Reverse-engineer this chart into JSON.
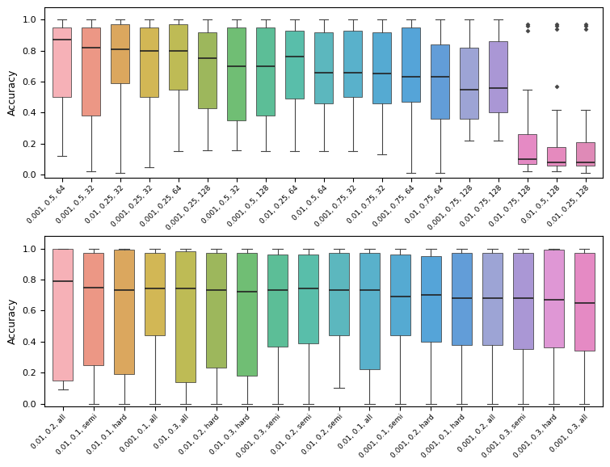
{
  "top_labels": [
    "0.001, 0.5, 64",
    "0.001, 0.5, 32",
    "0.01, 0.25, 32",
    "0.001, 0.25, 32",
    "0.001, 0.25, 64",
    "0.001, 0.25, 128",
    "0.001, 0.5, 32",
    "0.001, 0.5, 128",
    "0.01, 0.25, 64",
    "0.01, 0.5, 64",
    "0.001, 0.75, 32",
    "0.01, 0.75, 32",
    "0.001, 0.75, 64",
    "0.01, 0.75, 64",
    "0.001, 0.75, 128",
    "0.01, 0.75, 128",
    "0.01, 0.75, 128",
    "0.01, 0.5, 128",
    "0.01, 0.25, 128"
  ],
  "top_boxes": [
    {
      "whislo": 0.12,
      "q1": 0.5,
      "med": 0.87,
      "q3": 0.95,
      "whishi": 1.0,
      "fliers": []
    },
    {
      "whislo": 0.02,
      "q1": 0.38,
      "med": 0.82,
      "q3": 0.95,
      "whishi": 1.0,
      "fliers": []
    },
    {
      "whislo": 0.01,
      "q1": 0.59,
      "med": 0.81,
      "q3": 0.97,
      "whishi": 1.0,
      "fliers": []
    },
    {
      "whislo": 0.05,
      "q1": 0.5,
      "med": 0.8,
      "q3": 0.95,
      "whishi": 1.0,
      "fliers": []
    },
    {
      "whislo": 0.15,
      "q1": 0.55,
      "med": 0.8,
      "q3": 0.97,
      "whishi": 1.0,
      "fliers": []
    },
    {
      "whislo": 0.16,
      "q1": 0.43,
      "med": 0.75,
      "q3": 0.92,
      "whishi": 1.0,
      "fliers": []
    },
    {
      "whislo": 0.16,
      "q1": 0.35,
      "med": 0.7,
      "q3": 0.95,
      "whishi": 1.0,
      "fliers": []
    },
    {
      "whislo": 0.15,
      "q1": 0.38,
      "med": 0.7,
      "q3": 0.95,
      "whishi": 1.0,
      "fliers": []
    },
    {
      "whislo": 0.15,
      "q1": 0.49,
      "med": 0.76,
      "q3": 0.93,
      "whishi": 1.0,
      "fliers": []
    },
    {
      "whislo": 0.15,
      "q1": 0.46,
      "med": 0.66,
      "q3": 0.92,
      "whishi": 1.0,
      "fliers": []
    },
    {
      "whislo": 0.15,
      "q1": 0.5,
      "med": 0.66,
      "q3": 0.93,
      "whishi": 1.0,
      "fliers": []
    },
    {
      "whislo": 0.13,
      "q1": 0.46,
      "med": 0.65,
      "q3": 0.92,
      "whishi": 1.0,
      "fliers": []
    },
    {
      "whislo": 0.01,
      "q1": 0.47,
      "med": 0.63,
      "q3": 0.95,
      "whishi": 1.0,
      "fliers": []
    },
    {
      "whislo": 0.01,
      "q1": 0.36,
      "med": 0.63,
      "q3": 0.84,
      "whishi": 1.0,
      "fliers": []
    },
    {
      "whislo": 0.22,
      "q1": 0.36,
      "med": 0.55,
      "q3": 0.82,
      "whishi": 1.0,
      "fliers": []
    },
    {
      "whislo": 0.22,
      "q1": 0.4,
      "med": 0.56,
      "q3": 0.86,
      "whishi": 1.0,
      "fliers": []
    },
    {
      "whislo": 0.02,
      "q1": 0.07,
      "med": 0.1,
      "q3": 0.26,
      "whishi": 0.55,
      "fliers": [
        0.93,
        0.96,
        0.97
      ]
    },
    {
      "whislo": 0.02,
      "q1": 0.06,
      "med": 0.08,
      "q3": 0.18,
      "whishi": 0.42,
      "fliers": [
        0.57,
        0.94,
        0.96,
        0.97
      ]
    },
    {
      "whislo": 0.01,
      "q1": 0.06,
      "med": 0.08,
      "q3": 0.21,
      "whishi": 0.42,
      "fliers": [
        0.94,
        0.96,
        0.97
      ]
    }
  ],
  "top_colors": [
    "#F4A0A8",
    "#E8806A",
    "#D4943A",
    "#C8A830",
    "#B0AC30",
    "#88A838",
    "#50B055",
    "#38B080",
    "#35B098",
    "#38A8B0",
    "#34A0C0",
    "#3098C8",
    "#3090D0",
    "#4088D0",
    "#8890CC",
    "#9880CC",
    "#E070B8",
    "#E070B0",
    "#D870A8"
  ],
  "bot_labels": [
    "0.01, 0.2, all",
    "0.01, 0.1, semi",
    "0.01, 0.1, hard",
    "0.001, 0.1, all",
    "0.01, 0.3, all",
    "0.01, 0.2, hard",
    "0.01, 0.3, hard",
    "0.001, 0.3, semi",
    "0.01, 0.2, semi",
    "0.01, 0.2, semi",
    "0.01, 0.1, all",
    "0.001, 0.1, semi",
    "0.001, 0.2, hard",
    "0.001, 0.1, hard",
    "0.001, 0.2, all",
    "0.001, 0.3, semi",
    "0.001, 0.3, hard",
    "0.001, 0.3, all"
  ],
  "bot_boxes": [
    {
      "whislo": 0.09,
      "q1": 0.15,
      "med": 0.79,
      "q3": 1.0,
      "whishi": 1.0,
      "fliers": []
    },
    {
      "whislo": 0.0,
      "q1": 0.25,
      "med": 0.75,
      "q3": 0.97,
      "whishi": 1.0,
      "fliers": []
    },
    {
      "whislo": 0.0,
      "q1": 0.19,
      "med": 0.73,
      "q3": 0.99,
      "whishi": 1.0,
      "fliers": []
    },
    {
      "whislo": 0.0,
      "q1": 0.44,
      "med": 0.74,
      "q3": 0.97,
      "whishi": 1.0,
      "fliers": []
    },
    {
      "whislo": 0.0,
      "q1": 0.14,
      "med": 0.74,
      "q3": 0.98,
      "whishi": 1.0,
      "fliers": []
    },
    {
      "whislo": 0.0,
      "q1": 0.23,
      "med": 0.73,
      "q3": 0.97,
      "whishi": 1.0,
      "fliers": []
    },
    {
      "whislo": 0.0,
      "q1": 0.18,
      "med": 0.72,
      "q3": 0.97,
      "whishi": 1.0,
      "fliers": []
    },
    {
      "whislo": 0.0,
      "q1": 0.37,
      "med": 0.73,
      "q3": 0.96,
      "whishi": 1.0,
      "fliers": []
    },
    {
      "whislo": 0.0,
      "q1": 0.39,
      "med": 0.74,
      "q3": 0.96,
      "whishi": 1.0,
      "fliers": []
    },
    {
      "whislo": 0.1,
      "q1": 0.44,
      "med": 0.73,
      "q3": 0.97,
      "whishi": 1.0,
      "fliers": []
    },
    {
      "whislo": 0.0,
      "q1": 0.22,
      "med": 0.73,
      "q3": 0.97,
      "whishi": 1.0,
      "fliers": []
    },
    {
      "whislo": 0.0,
      "q1": 0.44,
      "med": 0.69,
      "q3": 0.96,
      "whishi": 1.0,
      "fliers": []
    },
    {
      "whislo": 0.0,
      "q1": 0.4,
      "med": 0.7,
      "q3": 0.95,
      "whishi": 1.0,
      "fliers": []
    },
    {
      "whislo": 0.0,
      "q1": 0.38,
      "med": 0.68,
      "q3": 0.97,
      "whishi": 1.0,
      "fliers": []
    },
    {
      "whislo": 0.0,
      "q1": 0.38,
      "med": 0.68,
      "q3": 0.97,
      "whishi": 1.0,
      "fliers": []
    },
    {
      "whislo": 0.0,
      "q1": 0.35,
      "med": 0.68,
      "q3": 0.97,
      "whishi": 1.0,
      "fliers": []
    },
    {
      "whislo": 0.0,
      "q1": 0.36,
      "med": 0.67,
      "q3": 0.99,
      "whishi": 1.0,
      "fliers": []
    },
    {
      "whislo": 0.0,
      "q1": 0.34,
      "med": 0.65,
      "q3": 0.97,
      "whishi": 1.0,
      "fliers": []
    }
  ],
  "bot_colors": [
    "#F4A0A8",
    "#E8806A",
    "#D4943A",
    "#C8A830",
    "#B0AC30",
    "#88A838",
    "#50B055",
    "#38B080",
    "#35B098",
    "#38A8B0",
    "#34A0C0",
    "#3098C8",
    "#3090D0",
    "#4088D0",
    "#8890CC",
    "#9880CC",
    "#D880CC",
    "#E070B8"
  ],
  "ylabel": "Accuracy",
  "figsize": [
    7.55,
    5.78
  ],
  "dpi": 100
}
